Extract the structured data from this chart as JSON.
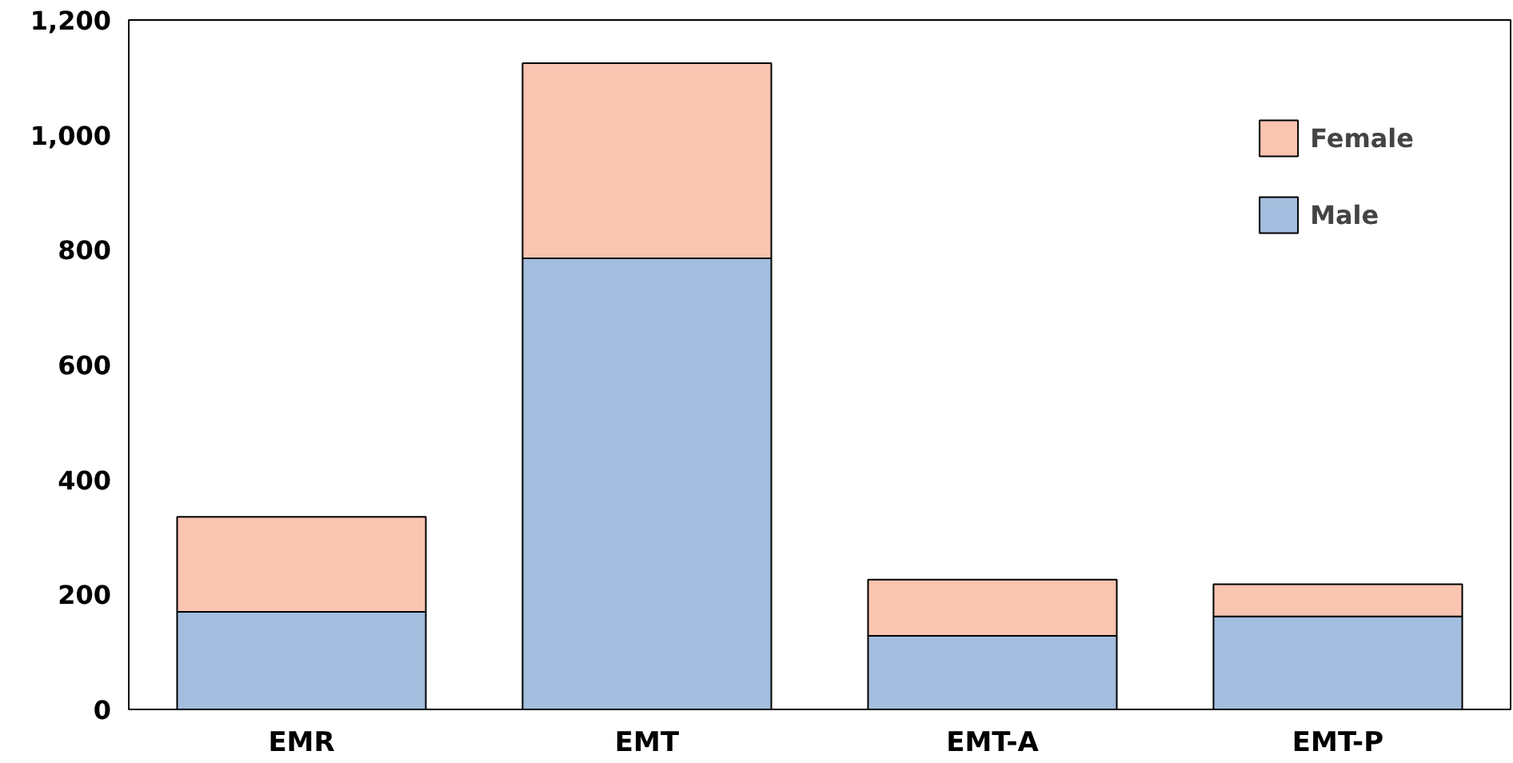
{
  "chart_data": {
    "type": "bar",
    "stacked": true,
    "categories": [
      "EMR",
      "EMT",
      "EMT-A",
      "EMT-P"
    ],
    "series": [
      {
        "name": "Male",
        "color": "#a3bede",
        "values": [
          170,
          785,
          128,
          162
        ]
      },
      {
        "name": "Female",
        "color": "#f9c4b0",
        "values": [
          165,
          340,
          98,
          56
        ]
      }
    ],
    "ylim": [
      0,
      1200
    ],
    "yticks": [
      0,
      {
        "value": 200,
        "label": "200"
      },
      {
        "value": 400,
        "label": "400"
      },
      {
        "value": 600,
        "label": "600"
      },
      {
        "value": 800,
        "label": "800"
      },
      {
        "value": 1000,
        "label": "1,000"
      },
      {
        "value": 1200,
        "label": "1,200"
      }
    ],
    "grid": false,
    "legend": "top right"
  }
}
